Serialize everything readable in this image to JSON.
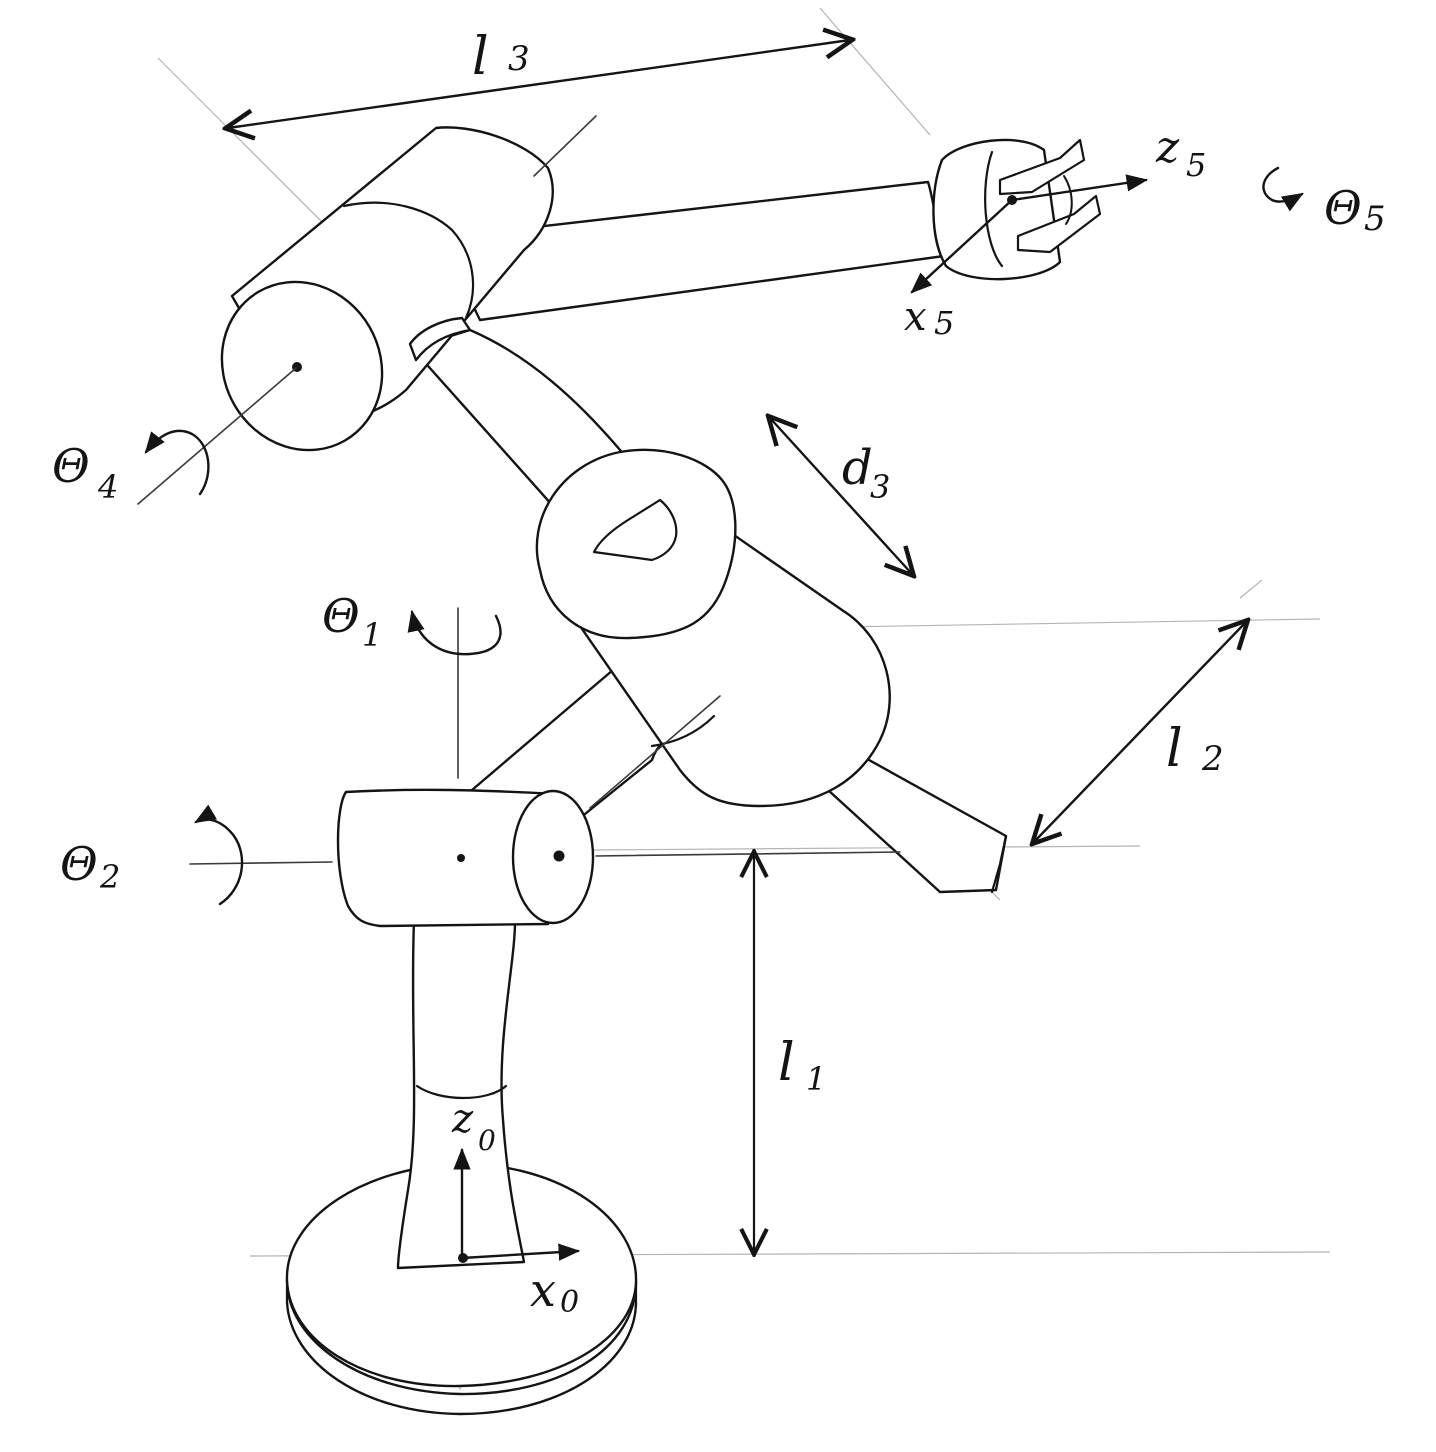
{
  "labels": {
    "l3": {
      "main": "l",
      "sub": "3"
    },
    "z5": {
      "main": "z",
      "sub": "5"
    },
    "theta5": {
      "main": "Θ",
      "sub": "5"
    },
    "x5": {
      "main": "x",
      "sub": "5"
    },
    "theta4": {
      "main": "Θ",
      "sub": "4"
    },
    "d3": {
      "main": "d",
      "sub": "3"
    },
    "theta1": {
      "main": "Θ",
      "sub": "1"
    },
    "l2": {
      "main": "l",
      "sub": "2"
    },
    "theta2": {
      "main": "Θ",
      "sub": "2"
    },
    "l1": {
      "main": "l",
      "sub": "1"
    },
    "z0": {
      "main": "z",
      "sub": "0"
    },
    "x0": {
      "main": "x",
      "sub": "0"
    }
  },
  "colors": {
    "ink": "#141414",
    "guide": "#b4b4b4",
    "paper": "#ffffff"
  }
}
